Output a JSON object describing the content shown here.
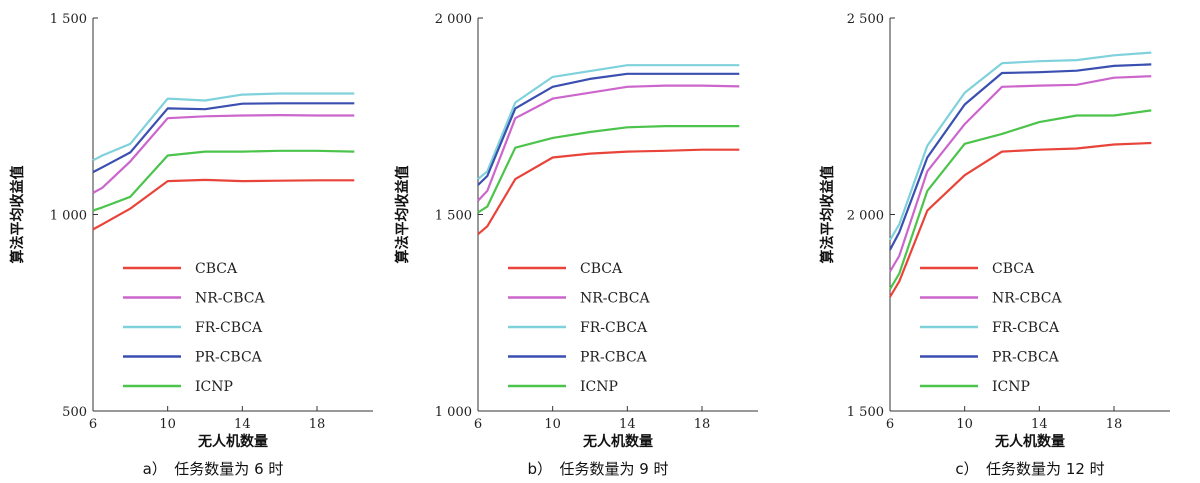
{
  "chart_data": [
    {
      "type": "line",
      "caption": "a）　任务数量为 6 时",
      "xlabel": "无人机数量",
      "ylabel": "算法平均收益值",
      "xlim": [
        6,
        21
      ],
      "ylim": [
        500,
        1500
      ],
      "xticks": [
        6,
        10,
        14,
        18
      ],
      "yticks": [
        500,
        1000,
        1500
      ],
      "ytick_labels": [
        "500",
        "1 000",
        "1 500"
      ],
      "grid": false,
      "legend": "lower-left",
      "x": [
        6,
        6.5,
        8,
        10,
        12,
        14,
        16,
        18,
        20
      ],
      "series": [
        {
          "name": "CBCA",
          "color": "#e8443a",
          "values": [
            962,
            975,
            1015,
            1085,
            1088,
            1085,
            1086,
            1087,
            1087
          ]
        },
        {
          "name": "NR-CBCA",
          "color": "#cc66cc",
          "values": [
            1055,
            1068,
            1135,
            1245,
            1250,
            1252,
            1253,
            1252,
            1252
          ]
        },
        {
          "name": "FR-CBCA",
          "color": "#7fd1dc",
          "values": [
            1138,
            1150,
            1180,
            1295,
            1290,
            1305,
            1308,
            1308,
            1308
          ]
        },
        {
          "name": "PR-CBCA",
          "color": "#3a4fb0",
          "values": [
            1108,
            1120,
            1158,
            1270,
            1268,
            1282,
            1283,
            1283,
            1283
          ]
        },
        {
          "name": "ICNP",
          "color": "#4cc44c",
          "values": [
            1010,
            1018,
            1045,
            1150,
            1160,
            1160,
            1162,
            1162,
            1160
          ]
        }
      ]
    },
    {
      "type": "line",
      "caption": "b）　任务数量为 9 时",
      "xlabel": "无人机数量",
      "ylabel": "算法平均收益值",
      "xlim": [
        6,
        21
      ],
      "ylim": [
        1000,
        2000
      ],
      "xticks": [
        6,
        10,
        14,
        18
      ],
      "yticks": [
        1000,
        1500,
        2000
      ],
      "ytick_labels": [
        "1 000",
        "1 500",
        "2 000"
      ],
      "grid": false,
      "legend": "lower-left",
      "x": [
        6,
        6.5,
        8,
        10,
        12,
        14,
        16,
        18,
        20
      ],
      "series": [
        {
          "name": "CBCA",
          "color": "#e8443a",
          "values": [
            1450,
            1470,
            1590,
            1645,
            1655,
            1660,
            1662,
            1665,
            1665
          ]
        },
        {
          "name": "NR-CBCA",
          "color": "#cc66cc",
          "values": [
            1535,
            1560,
            1745,
            1795,
            1810,
            1825,
            1828,
            1828,
            1826
          ]
        },
        {
          "name": "FR-CBCA",
          "color": "#7fd1dc",
          "values": [
            1590,
            1610,
            1785,
            1850,
            1865,
            1880,
            1880,
            1880,
            1880
          ]
        },
        {
          "name": "PR-CBCA",
          "color": "#3a4fb0",
          "values": [
            1575,
            1598,
            1770,
            1825,
            1845,
            1858,
            1858,
            1858,
            1858
          ]
        },
        {
          "name": "ICNP",
          "color": "#4cc44c",
          "values": [
            1505,
            1520,
            1670,
            1695,
            1710,
            1722,
            1725,
            1725,
            1725
          ]
        }
      ]
    },
    {
      "type": "line",
      "caption": "c）　任务数量为 12 时",
      "xlabel": "无人机数量",
      "ylabel": "算法平均收益值",
      "xlim": [
        6,
        21
      ],
      "ylim": [
        1500,
        2500
      ],
      "xticks": [
        6,
        10,
        14,
        18
      ],
      "yticks": [
        1500,
        2000,
        2500
      ],
      "ytick_labels": [
        "1 500",
        "2 000",
        "2 500"
      ],
      "grid": false,
      "legend": "lower-left",
      "x": [
        6,
        6.5,
        8,
        10,
        12,
        14,
        16,
        18,
        20
      ],
      "series": [
        {
          "name": "CBCA",
          "color": "#e8443a",
          "values": [
            1790,
            1830,
            2010,
            2100,
            2160,
            2165,
            2168,
            2178,
            2182
          ]
        },
        {
          "name": "NR-CBCA",
          "color": "#cc66cc",
          "values": [
            1855,
            1895,
            2110,
            2230,
            2325,
            2328,
            2330,
            2348,
            2352
          ]
        },
        {
          "name": "FR-CBCA",
          "color": "#7fd1dc",
          "values": [
            1935,
            1975,
            2175,
            2310,
            2385,
            2390,
            2393,
            2405,
            2412
          ]
        },
        {
          "name": "PR-CBCA",
          "color": "#3a4fb0",
          "values": [
            1910,
            1955,
            2145,
            2280,
            2360,
            2362,
            2366,
            2378,
            2382
          ]
        },
        {
          "name": "ICNP",
          "color": "#4cc44c",
          "values": [
            1810,
            1850,
            2060,
            2180,
            2205,
            2235,
            2252,
            2252,
            2265
          ]
        }
      ]
    }
  ]
}
